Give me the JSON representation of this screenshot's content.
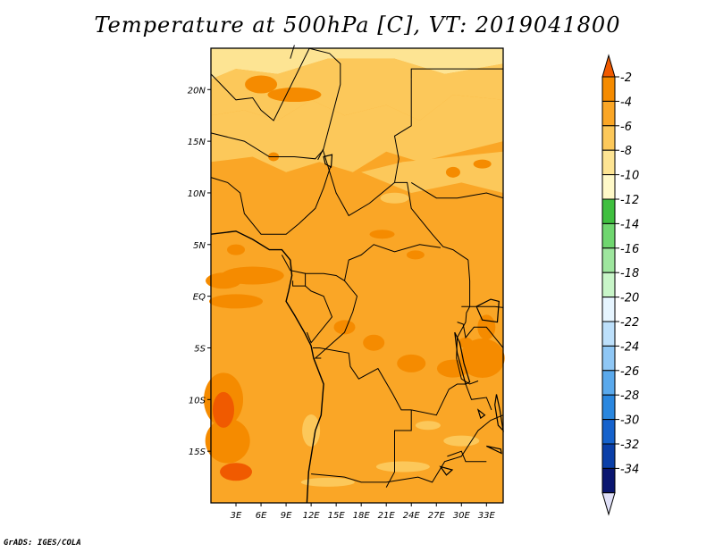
{
  "chart_data": {
    "type": "heatmap",
    "title": "Temperature at 500hPa [C], VT: 2019041800",
    "x_ticks": [
      "3E",
      "6E",
      "9E",
      "12E",
      "15E",
      "18E",
      "21E",
      "24E",
      "27E",
      "30E",
      "33E"
    ],
    "y_ticks": [
      "20N",
      "15N",
      "10N",
      "5N",
      "EQ",
      "5S",
      "10S",
      "15S"
    ],
    "colorbar": {
      "levels": [
        "-2",
        "-4",
        "-6",
        "-8",
        "-10",
        "-12",
        "-14",
        "-16",
        "-18",
        "-20",
        "-22",
        "-24",
        "-26",
        "-28",
        "-30",
        "-32",
        "-34"
      ],
      "colors": [
        "#f05a00",
        "#f58b00",
        "#faa626",
        "#fcc85a",
        "#fde493",
        "#fff9c8",
        "#3fbf3f",
        "#6fd66f",
        "#9ee69e",
        "#c8f5c8",
        "#e6f5ff",
        "#bde0fb",
        "#8fc7f5",
        "#5aa9ec",
        "#2a87df",
        "#1562cc",
        "#0a3fa8",
        "#0a1670",
        "#e0e0f8"
      ]
    },
    "lon_range": [
      0,
      35
    ],
    "lat_range": [
      -20,
      24
    ],
    "grid": false
  },
  "credit": "GrADS: IGES/COLA"
}
